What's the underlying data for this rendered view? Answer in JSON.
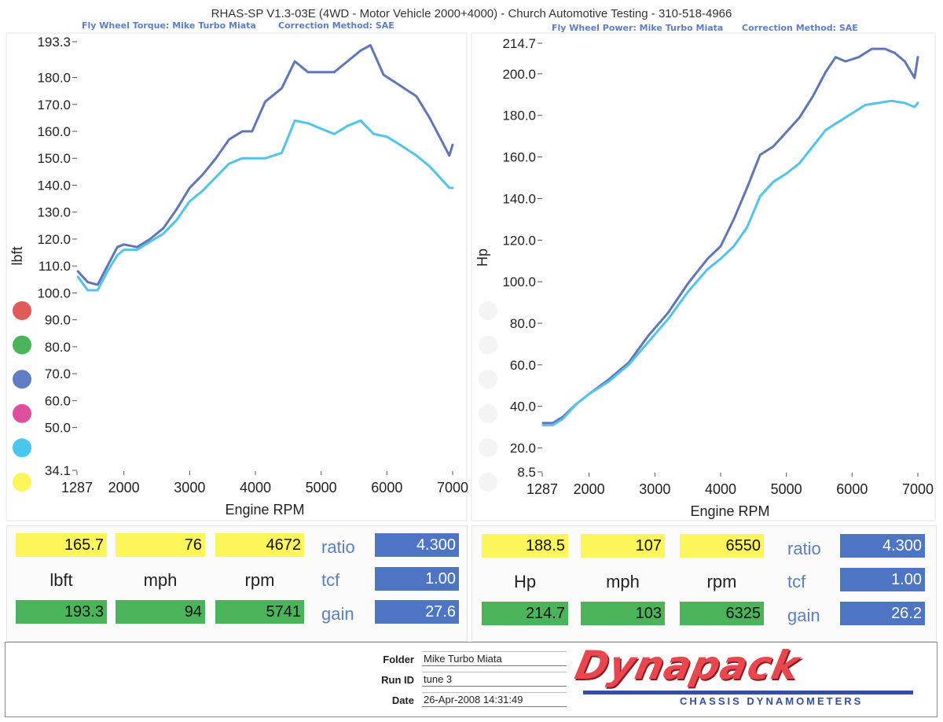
{
  "title": "RHAS-SP V1.3-03E  (4WD - Motor Vehicle 2000+4000) - Church Automotive Testing - 310-518-4966",
  "legend_dots": [
    "#e05a5a",
    "#4bb45b",
    "#5f7ec5",
    "#df4fa0",
    "#4cc6ee",
    "#fdf65b"
  ],
  "colors": {
    "dark_series": "#5f76b8",
    "light_series": "#50c4ea",
    "yellow_box": "#fdf65b",
    "green_box": "#4bb45b",
    "blue_box": "#4d75c4",
    "label_blue": "#5b7fc6"
  },
  "chart_data": [
    {
      "type": "line",
      "subtitle_left": "Fly Wheel Torque: Mike Turbo Miata",
      "subtitle_right": "Correction Method: SAE",
      "xlabel": "Engine RPM",
      "ylabel": "lbft",
      "xlim": [
        1287,
        7000
      ],
      "ylim": [
        34.1,
        193.3
      ],
      "x_ticks": [
        1287,
        2000,
        3000,
        4000,
        5000,
        6000,
        7000
      ],
      "y_ticks": [
        34.1,
        50.0,
        60.0,
        70.0,
        80.0,
        90.0,
        100.0,
        110.0,
        120.0,
        130.0,
        140.0,
        150.0,
        160.0,
        170.0,
        180.0,
        193.3
      ],
      "series": [
        {
          "color": "#5f76b8",
          "x": [
            1300,
            1450,
            1600,
            1750,
            1900,
            2000,
            2200,
            2400,
            2600,
            2800,
            3000,
            3200,
            3400,
            3600,
            3800,
            3950,
            4150,
            4400,
            4600,
            4800,
            5000,
            5200,
            5400,
            5600,
            5750,
            5950,
            6200,
            6450,
            6650,
            6800,
            6950,
            7000
          ],
          "y": [
            108,
            104,
            103,
            110,
            117,
            118,
            117,
            120,
            124,
            131,
            139,
            144,
            150,
            157,
            160,
            160,
            171,
            176,
            186,
            182,
            182,
            182,
            186,
            190,
            192,
            181,
            177,
            173,
            165,
            158,
            151,
            155
          ]
        },
        {
          "color": "#50c4ea",
          "x": [
            1300,
            1450,
            1600,
            1750,
            1900,
            2000,
            2200,
            2400,
            2600,
            2800,
            3000,
            3200,
            3400,
            3600,
            3800,
            3950,
            4150,
            4400,
            4600,
            4800,
            5000,
            5200,
            5400,
            5600,
            5800,
            6000,
            6200,
            6450,
            6650,
            6800,
            6950,
            7000
          ],
          "y": [
            106,
            101,
            101,
            108,
            114,
            116,
            116,
            119,
            122,
            127,
            134,
            138,
            143,
            148,
            150,
            150,
            150,
            152,
            164,
            163,
            161,
            159,
            162,
            164,
            159,
            158,
            155,
            151,
            147,
            143,
            139,
            139
          ]
        }
      ]
    },
    {
      "type": "line",
      "subtitle_left": "Fly Wheel Power: Mike Turbo Miata",
      "subtitle_right": "Correction Method: SAE",
      "xlabel": "Engine RPM",
      "ylabel": "Hp",
      "xlim": [
        1287,
        7000
      ],
      "ylim": [
        8.5,
        214.7
      ],
      "x_ticks": [
        1287,
        2000,
        3000,
        4000,
        5000,
        6000,
        7000
      ],
      "y_ticks": [
        8.5,
        20.0,
        40.0,
        60.0,
        80.0,
        100.0,
        120.0,
        140.0,
        160.0,
        180.0,
        200.0,
        214.7
      ],
      "series": [
        {
          "color": "#5f76b8",
          "x": [
            1300,
            1450,
            1600,
            1800,
            2000,
            2300,
            2600,
            2900,
            3200,
            3500,
            3800,
            4000,
            4200,
            4400,
            4600,
            4800,
            5000,
            5200,
            5400,
            5600,
            5750,
            5900,
            6100,
            6300,
            6500,
            6650,
            6800,
            6950,
            7000
          ],
          "y": [
            32,
            32,
            35,
            41,
            46,
            53,
            61,
            74,
            85,
            99,
            111,
            117,
            130,
            145,
            161,
            165,
            172,
            179,
            189,
            201,
            208,
            206,
            208,
            212,
            212,
            210,
            206,
            198,
            208
          ]
        },
        {
          "color": "#50c4ea",
          "x": [
            1300,
            1450,
            1600,
            1800,
            2000,
            2300,
            2600,
            2900,
            3200,
            3500,
            3800,
            4000,
            4200,
            4400,
            4600,
            4800,
            5000,
            5200,
            5400,
            5600,
            5800,
            6000,
            6200,
            6400,
            6600,
            6800,
            6950,
            7000
          ],
          "y": [
            31,
            31,
            34,
            41,
            46,
            52,
            60,
            71,
            82,
            95,
            106,
            111,
            117,
            126,
            141,
            148,
            152,
            157,
            165,
            173,
            177,
            181,
            185,
            186,
            187,
            186,
            184,
            186
          ]
        }
      ]
    }
  ],
  "panels": [
    {
      "top": [
        "165.7",
        "76",
        "4672"
      ],
      "units": [
        "lbft",
        "mph",
        "rpm"
      ],
      "bottom": [
        "193.3",
        "94",
        "5741"
      ],
      "params": [
        {
          "label": "ratio",
          "value": "4.300"
        },
        {
          "label": "tcf",
          "value": "1.00"
        },
        {
          "label": "gain",
          "value": "27.6"
        }
      ]
    },
    {
      "top": [
        "188.5",
        "107",
        "6550"
      ],
      "units": [
        "Hp",
        "mph",
        "rpm"
      ],
      "bottom": [
        "214.7",
        "103",
        "6325"
      ],
      "params": [
        {
          "label": "ratio",
          "value": "4.300"
        },
        {
          "label": "tcf",
          "value": "1.00"
        },
        {
          "label": "gain",
          "value": "26.2"
        }
      ]
    }
  ],
  "footer": {
    "folder_label": "Folder",
    "folder_value": "Mike Turbo Miata",
    "runid_label": "Run ID",
    "runid_value": "tune 3",
    "date_label": "Date",
    "date_value": "26-Apr-2008  14:31:49",
    "logo_text": "Dynapack",
    "logo_subtext": "CHASSIS   DYNAMOMETERS"
  }
}
